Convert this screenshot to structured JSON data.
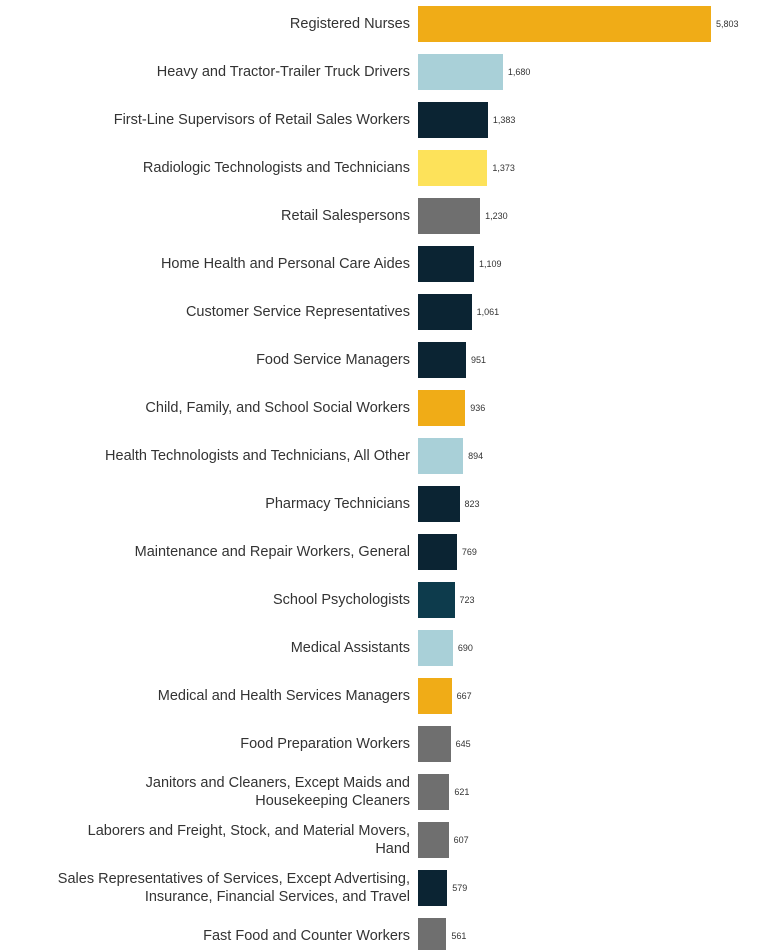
{
  "chart_data": {
    "type": "bar",
    "orientation": "horizontal",
    "categories": [
      "Registered Nurses",
      "Heavy and Tractor-Trailer Truck Drivers",
      "First-Line Supervisors of Retail Sales Workers",
      "Radiologic Technologists and Technicians",
      "Retail Salespersons",
      "Home Health and Personal Care Aides",
      "Customer Service Representatives",
      "Food Service Managers",
      "Child, Family, and School Social Workers",
      "Health Technologists and Technicians, All Other",
      "Pharmacy Technicians",
      "Maintenance and Repair Workers, General",
      "School Psychologists",
      "Medical Assistants",
      "Medical and Health Services Managers",
      "Food Preparation Workers",
      "Janitors and Cleaners, Except Maids and\nHousekeeping Cleaners",
      "Laborers and Freight, Stock, and Material Movers,\nHand",
      "Sales Representatives of Services, Except Advertising,\nInsurance, Financial Services, and Travel",
      "Fast Food and Counter Workers"
    ],
    "values": [
      5803,
      1680,
      1383,
      1373,
      1230,
      1109,
      1061,
      951,
      936,
      894,
      823,
      769,
      723,
      690,
      667,
      645,
      621,
      607,
      579,
      561
    ],
    "value_labels": [
      "5,803",
      "1,680",
      "1,383",
      "1,373",
      "1,230",
      "1,109",
      "1,061",
      "951",
      "936",
      "894",
      "823",
      "769",
      "723",
      "690",
      "667",
      "645",
      "621",
      "607",
      "579",
      "561"
    ],
    "colors": [
      "#f0ac17",
      "#a9d0d8",
      "#0b2433",
      "#fde25a",
      "#6f6f6f",
      "#0b2433",
      "#0b2433",
      "#0b2433",
      "#f0ac17",
      "#a9d0d8",
      "#0b2433",
      "#0b2433",
      "#0d3b4c",
      "#a9d0d8",
      "#f0ac17",
      "#6f6f6f",
      "#6f6f6f",
      "#6f6f6f",
      "#0b2433",
      "#6f6f6f"
    ]
  }
}
